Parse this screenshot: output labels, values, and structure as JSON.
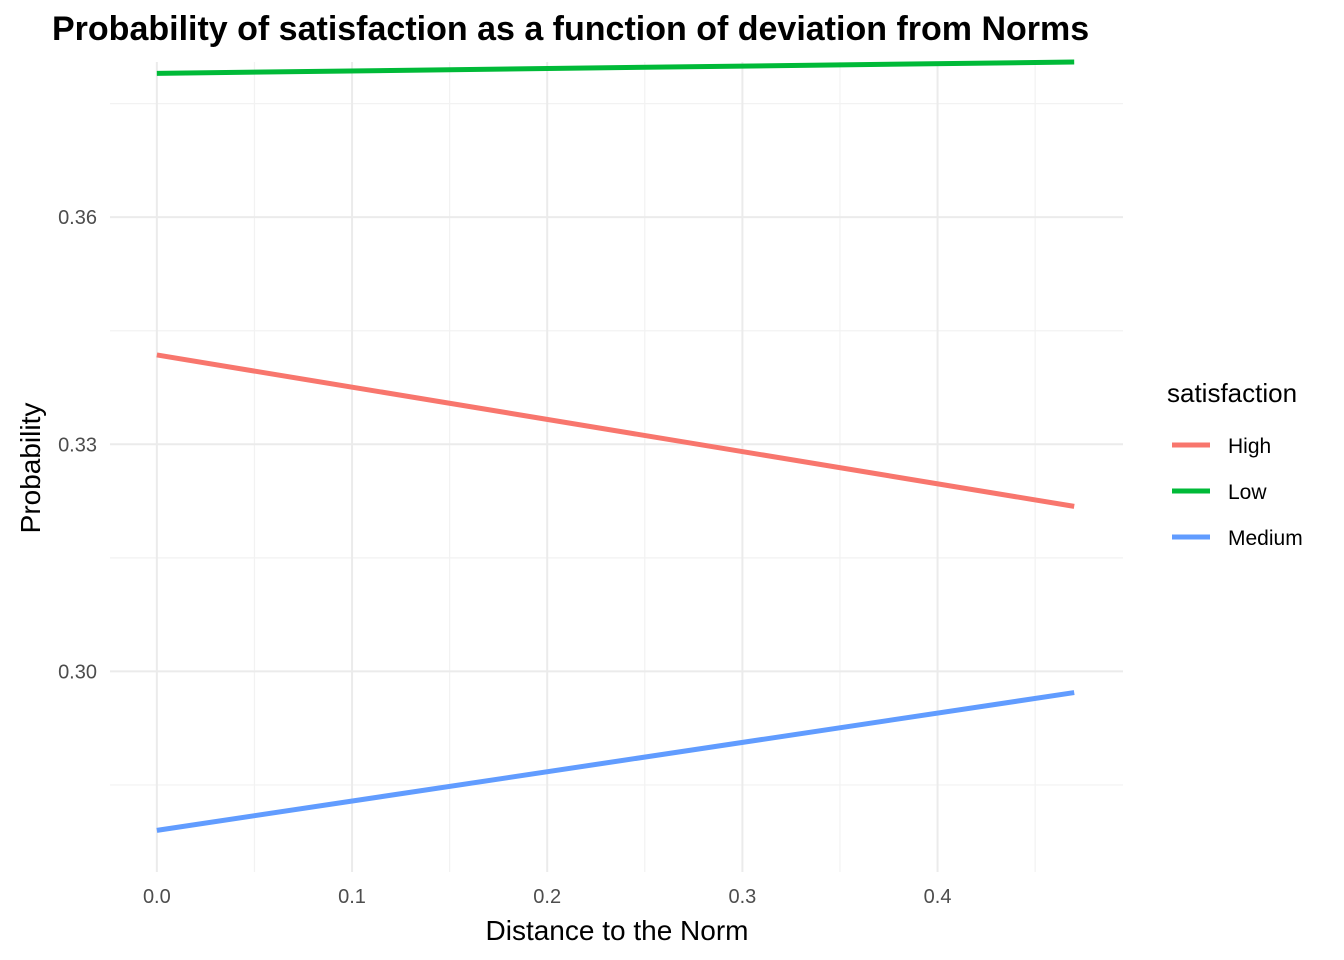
{
  "chart_data": {
    "type": "line",
    "title": "Probability of satisfaction as a function of deviation from Norms",
    "xlabel": "Distance to the Norm",
    "ylabel": "Probability",
    "xlim": [
      -0.024,
      0.495
    ],
    "ylim": [
      0.2735,
      0.3805
    ],
    "x_ticks": [
      0.0,
      0.1,
      0.2,
      0.3,
      0.4
    ],
    "x_tick_labels": [
      "0.0",
      "0.1",
      "0.2",
      "0.3",
      "0.4"
    ],
    "x_minor_ticks": [
      0.05,
      0.15,
      0.25,
      0.35,
      0.45
    ],
    "y_ticks": [
      0.3,
      0.33,
      0.36
    ],
    "y_tick_labels": [
      "0.30",
      "0.33",
      "0.36"
    ],
    "y_minor_ticks": [
      0.285,
      0.315,
      0.345,
      0.375
    ],
    "grid": true,
    "legend": {
      "title": "satisfaction",
      "position": "right"
    },
    "series": [
      {
        "name": "High",
        "color": "#F8766D",
        "x": [
          0.0,
          0.47
        ],
        "y": [
          0.3418,
          0.3218
        ]
      },
      {
        "name": "Low",
        "color": "#00BA38",
        "x": [
          0.0,
          0.47
        ],
        "y": [
          0.379,
          0.3805
        ]
      },
      {
        "name": "Medium",
        "color": "#619CFF",
        "x": [
          0.0,
          0.47
        ],
        "y": [
          0.279,
          0.2972
        ]
      }
    ]
  }
}
